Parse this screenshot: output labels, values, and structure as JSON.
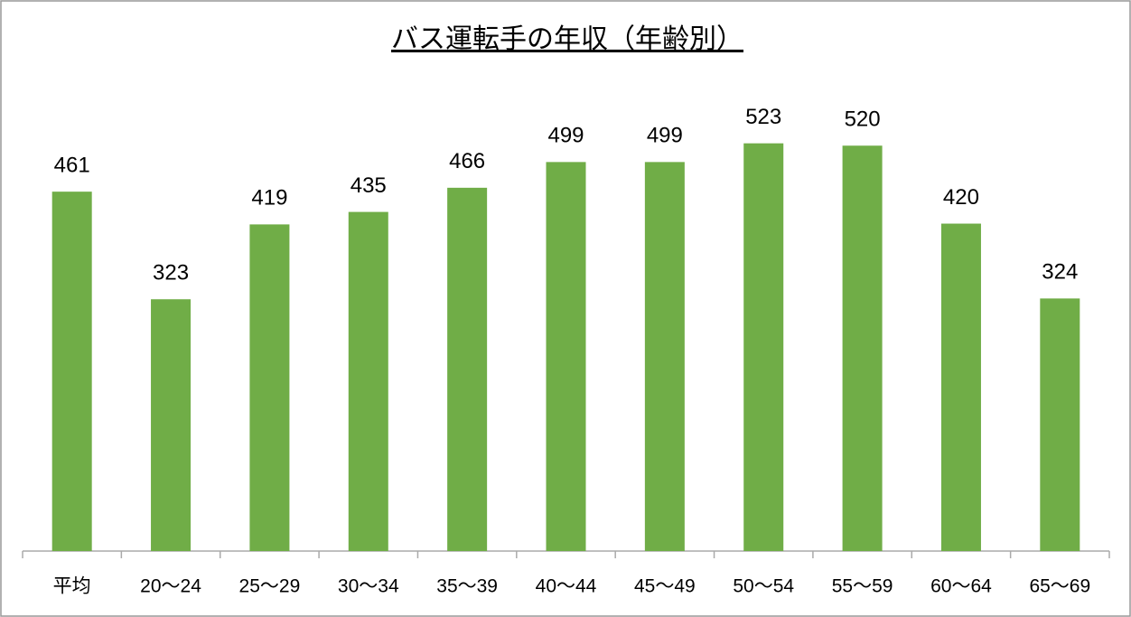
{
  "chart_data": {
    "type": "bar",
    "title": "バス運転手の年収（年齢別）",
    "categories": [
      "平均",
      "20～24",
      "25～29",
      "30～34",
      "35～39",
      "40～44",
      "45～49",
      "50～54",
      "55～59",
      "60～64",
      "65～69"
    ],
    "values": [
      461,
      323,
      419,
      435,
      466,
      499,
      499,
      523,
      520,
      420,
      324
    ],
    "color": "#70ad47"
  }
}
